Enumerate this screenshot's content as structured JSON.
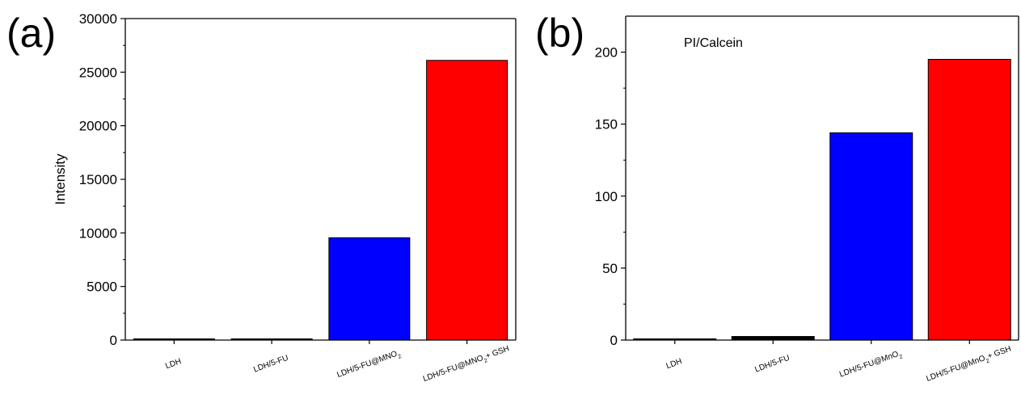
{
  "chart_data": [
    {
      "panel_label": "(a)",
      "type": "bar",
      "categories": [
        "LDH",
        "LDH/5-FU",
        "LDH/5-FU@MNO|2|",
        "LDH/5-FU@MNO|2|+ GSH"
      ],
      "values": [
        80,
        90,
        9550,
        26100
      ],
      "colors": [
        "#000000",
        "#000000",
        "#0000ff",
        "#ff0000"
      ],
      "ylabel": "Intensity",
      "ylim": [
        0,
        30000
      ],
      "yticks": [
        0,
        5000,
        10000,
        15000,
        20000,
        25000,
        30000
      ],
      "annotation": "",
      "grid": false
    },
    {
      "panel_label": "(b)",
      "type": "bar",
      "categories": [
        "LDH",
        "LDH/5-FU",
        "LDH/5-FU@MnO|2|",
        "LDH/5-FU@MnO|2|+ GSH"
      ],
      "values": [
        0.3,
        2.5,
        144,
        195
      ],
      "colors": [
        "#000000",
        "#000000",
        "#0000ff",
        "#ff0000"
      ],
      "ylabel": "",
      "ylim": [
        0,
        225
      ],
      "yticks": [
        0,
        50,
        100,
        150,
        200
      ],
      "annotation": "PI/Calcein",
      "grid": false
    }
  ]
}
